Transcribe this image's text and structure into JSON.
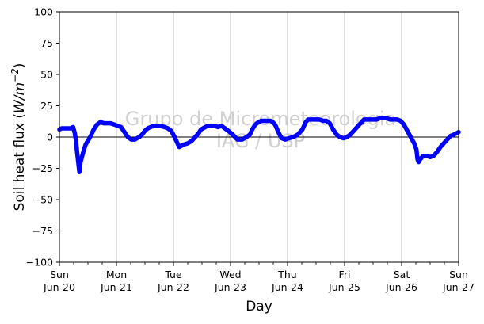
{
  "chart_data": {
    "type": "line",
    "title": "",
    "xlabel": "Day",
    "ylabel": "Soil heat flux (W/m⁻²)",
    "ylabel_parts": {
      "prefix": "Soil heat flux (",
      "var": "W/m",
      "exp": "−2",
      "suffix": ")"
    },
    "xlim": [
      0,
      7
    ],
    "ylim": [
      -100,
      100
    ],
    "yticks": [
      -100,
      -75,
      -50,
      -25,
      0,
      25,
      50,
      75,
      100
    ],
    "ytick_labels": [
      "−100",
      "−75",
      "−50",
      "−25",
      "0",
      "25",
      "50",
      "75",
      "100"
    ],
    "xticks": [
      {
        "x": 0,
        "day": "Sun",
        "date": "Jun-20"
      },
      {
        "x": 1,
        "day": "Mon",
        "date": "Jun-21"
      },
      {
        "x": 2,
        "day": "Tue",
        "date": "Jun-22"
      },
      {
        "x": 3,
        "day": "Wed",
        "date": "Jun-23"
      },
      {
        "x": 4,
        "day": "Thu",
        "date": "Jun-24"
      },
      {
        "x": 5,
        "day": "Fri",
        "date": "Jun-25"
      },
      {
        "x": 6,
        "day": "Sat",
        "date": "Jun-26"
      },
      {
        "x": 7,
        "day": "Sun",
        "date": "Jun-27"
      }
    ],
    "minor_xticks": [
      0.25,
      0.5,
      0.75,
      1.25,
      1.5,
      1.75,
      2.25,
      2.5,
      2.75,
      3.25,
      3.5,
      3.75,
      4.25,
      4.5,
      4.75,
      5.25,
      5.5,
      5.75,
      6.25,
      6.5,
      6.75
    ],
    "grid": "x-major",
    "zero_line": true,
    "watermark": [
      "Grupo de Micrometeorologia",
      "IAG / USP"
    ],
    "series": [
      {
        "color": "#0000ff",
        "x": [
          0,
          0.04,
          0.08,
          0.12,
          0.16,
          0.2,
          0.24,
          0.27,
          0.29,
          0.31,
          0.33,
          0.35,
          0.37,
          0.4,
          0.43,
          0.46,
          0.5,
          0.55,
          0.6,
          0.66,
          0.72,
          0.78,
          0.84,
          0.9,
          0.96,
          1.02,
          1.08,
          1.14,
          1.2,
          1.26,
          1.32,
          1.36,
          1.4,
          1.45,
          1.5,
          1.55,
          1.6,
          1.66,
          1.72,
          1.78,
          1.84,
          1.9,
          1.96,
          2.02,
          2.1,
          2.18,
          2.25,
          2.32,
          2.38,
          2.44,
          2.48,
          2.52,
          2.56,
          2.6,
          2.66,
          2.72,
          2.78,
          2.84,
          2.9,
          2.96,
          3.04,
          3.12,
          3.2,
          3.28,
          3.34,
          3.38,
          3.42,
          3.46,
          3.5,
          3.54,
          3.58,
          3.62,
          3.66,
          3.7,
          3.74,
          3.78,
          3.82,
          3.86,
          3.9,
          3.96,
          4.02,
          4.1,
          4.18,
          4.26,
          4.3,
          4.32,
          4.34,
          4.36,
          4.38,
          4.4,
          4.44,
          4.5,
          4.56,
          4.62,
          4.68,
          4.74,
          4.8,
          4.86,
          4.92,
          4.98,
          5.04,
          5.1,
          5.16,
          5.22,
          5.26,
          5.28,
          5.3,
          5.32,
          5.34,
          5.38,
          5.44,
          5.5,
          5.56,
          5.62,
          5.68,
          5.74,
          5.8,
          5.86,
          5.92,
          5.98,
          6.04,
          6.1,
          6.16,
          6.22,
          6.26,
          6.28,
          6.3,
          6.32,
          6.34,
          6.38,
          6.44,
          6.5,
          6.56,
          6.62,
          6.68,
          6.74,
          6.8,
          6.86,
          6.92,
          6.96,
          7.0
        ],
        "y": [
          6,
          7,
          7,
          7,
          7,
          7,
          8,
          3,
          -3,
          -12,
          -20,
          -28,
          -20,
          -15,
          -10,
          -6,
          -3,
          1,
          6,
          10,
          12,
          11,
          11,
          11,
          10,
          9,
          8,
          4,
          0,
          -2,
          -2,
          -1,
          0,
          2,
          5,
          7,
          8,
          9,
          9,
          9,
          8,
          7,
          5,
          0,
          -8,
          -6,
          -5,
          -3,
          0,
          3,
          6,
          7,
          8,
          9,
          9,
          9,
          8,
          9,
          7,
          5,
          2,
          -2,
          -2,
          0,
          2,
          6,
          9,
          11,
          12,
          13,
          13,
          13,
          13,
          13,
          12,
          10,
          6,
          2,
          -1,
          -2,
          -1,
          0,
          2,
          6,
          10,
          12,
          13,
          14,
          14,
          14,
          14,
          14,
          14,
          13,
          13,
          11,
          6,
          2,
          0,
          -1,
          0,
          2,
          5,
          8,
          10,
          11,
          12,
          13,
          14,
          14,
          14,
          14,
          14,
          15,
          15,
          15,
          14,
          14,
          14,
          13,
          10,
          5,
          0,
          -5,
          -10,
          -18,
          -20,
          -18,
          -17,
          -15,
          -15,
          -16,
          -15,
          -12,
          -8,
          -5,
          -2,
          1,
          2,
          3,
          4
        ],
        "note_segments": "shape approximated from plot"
      }
    ]
  }
}
